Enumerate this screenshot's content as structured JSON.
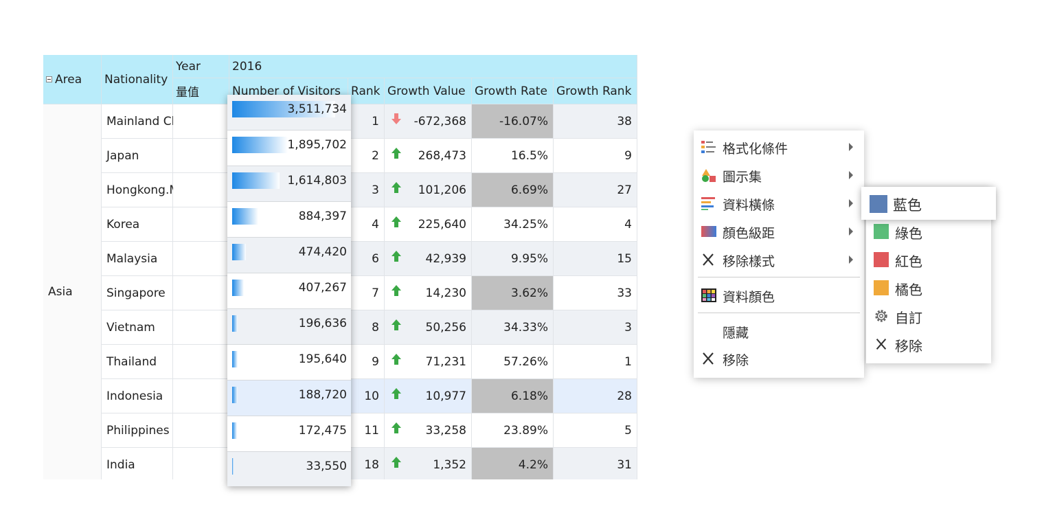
{
  "grid": {
    "header": {
      "area": "Area",
      "nationality": "Nationality",
      "year_label": "Year",
      "year_value": "2016",
      "measure_label": "量值",
      "columns": [
        "Number of Visitors",
        "Rank",
        "Growth Value",
        "Growth Rate",
        "Growth Rank"
      ]
    },
    "area_value": "Asia",
    "rows": [
      {
        "nationality": "Mainland China",
        "visitors": "3,511,734",
        "visitors_num": 3511734,
        "rank": "1",
        "trend": "down",
        "growth_value": "-672,368",
        "growth_rate": "-16.07%",
        "growth_rank": "38",
        "rate_gray": true
      },
      {
        "nationality": "Japan",
        "visitors": "1,895,702",
        "visitors_num": 1895702,
        "rank": "2",
        "trend": "up",
        "growth_value": "268,473",
        "growth_rate": "16.5%",
        "growth_rank": "9",
        "rate_gray": false
      },
      {
        "nationality": "Hongkong.Macou",
        "visitors": "1,614,803",
        "visitors_num": 1614803,
        "rank": "3",
        "trend": "up",
        "growth_value": "101,206",
        "growth_rate": "6.69%",
        "growth_rank": "27",
        "rate_gray": true
      },
      {
        "nationality": "Korea",
        "visitors": "884,397",
        "visitors_num": 884397,
        "rank": "4",
        "trend": "up",
        "growth_value": "225,640",
        "growth_rate": "34.25%",
        "growth_rank": "4",
        "rate_gray": false
      },
      {
        "nationality": "Malaysia",
        "visitors": "474,420",
        "visitors_num": 474420,
        "rank": "6",
        "trend": "up",
        "growth_value": "42,939",
        "growth_rate": "9.95%",
        "growth_rank": "15",
        "rate_gray": false
      },
      {
        "nationality": "Singapore",
        "visitors": "407,267",
        "visitors_num": 407267,
        "rank": "7",
        "trend": "up",
        "growth_value": "14,230",
        "growth_rate": "3.62%",
        "growth_rank": "33",
        "rate_gray": true
      },
      {
        "nationality": "Vietnam",
        "visitors": "196,636",
        "visitors_num": 196636,
        "rank": "8",
        "trend": "up",
        "growth_value": "50,256",
        "growth_rate": "34.33%",
        "growth_rank": "3",
        "rate_gray": false
      },
      {
        "nationality": "Thailand",
        "visitors": "195,640",
        "visitors_num": 195640,
        "rank": "9",
        "trend": "up",
        "growth_value": "71,231",
        "growth_rate": "57.26%",
        "growth_rank": "1",
        "rate_gray": false
      },
      {
        "nationality": "Indonesia",
        "visitors": "188,720",
        "visitors_num": 188720,
        "rank": "10",
        "trend": "up",
        "growth_value": "10,977",
        "growth_rate": "6.18%",
        "growth_rank": "28",
        "rate_gray": true
      },
      {
        "nationality": "Philippines",
        "visitors": "172,475",
        "visitors_num": 172475,
        "rank": "11",
        "trend": "up",
        "growth_value": "33,258",
        "growth_rate": "23.89%",
        "growth_rank": "5",
        "rate_gray": false
      },
      {
        "nationality": "India",
        "visitors": "33,550",
        "visitors_num": 33550,
        "rank": "18",
        "trend": "up",
        "growth_value": "1,352",
        "growth_rate": "4.2%",
        "growth_rank": "31",
        "rate_gray": true
      }
    ],
    "selected_row": "Indonesia"
  },
  "context_menu": {
    "items": [
      {
        "label": "格式化條件",
        "icon": "conditional-format-icon",
        "submenu": true
      },
      {
        "label": "圖示集",
        "icon": "icon-set-icon",
        "submenu": true
      },
      {
        "label": "資料橫條",
        "icon": "data-bar-icon",
        "submenu": true
      },
      {
        "label": "顏色級距",
        "icon": "color-scale-icon",
        "submenu": true
      },
      {
        "label": "移除樣式",
        "icon": "close-icon",
        "submenu": true
      },
      {
        "label": "資料顏色",
        "icon": "data-color-icon",
        "submenu": false
      },
      {
        "label": "隱藏",
        "icon": "",
        "submenu": false
      },
      {
        "label": "移除",
        "icon": "close-icon",
        "submenu": false
      }
    ]
  },
  "submenu": {
    "items": [
      {
        "label": "藍色",
        "color": "#5b7fb5",
        "kind": "swatch"
      },
      {
        "label": "綠色",
        "color": "#5bbd79",
        "kind": "swatch"
      },
      {
        "label": "紅色",
        "color": "#e0585a",
        "kind": "swatch"
      },
      {
        "label": "橘色",
        "color": "#f0a93a",
        "kind": "swatch"
      },
      {
        "label": "自訂",
        "color": "",
        "kind": "gear"
      },
      {
        "label": "移除",
        "color": "",
        "kind": "close"
      }
    ]
  },
  "colors": {
    "header_bg": "#b9ecfa",
    "bar_blue": "#1e88e5",
    "arrow_up": "#3aa845",
    "arrow_down": "#f08080",
    "gray_cell": "#c0c0c0",
    "selected_row": "#e4eefc",
    "alt_row": "#eef1f5"
  }
}
